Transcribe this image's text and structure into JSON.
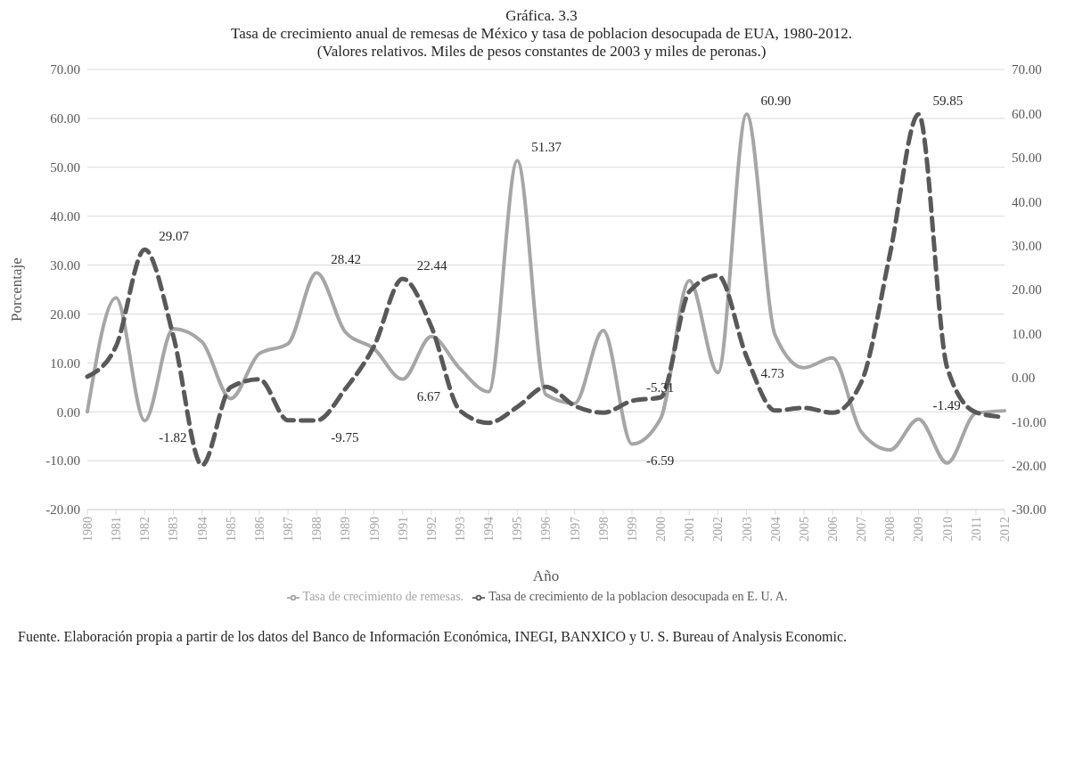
{
  "chart_data": {
    "type": "line",
    "title": "Gráfica. 3.3",
    "subtitle": "Tasa de crecimiento anual de remesas de México y tasa de poblacion desocupada de EUA,  1980-2012.\n(Valores relativos. Miles de pesos constantes de 2003  y miles de peronas.)",
    "xlabel": "Año",
    "ylabel": "Porcentaje",
    "categories": [
      "1980",
      "1981",
      "1982",
      "1983",
      "1984",
      "1985",
      "1986",
      "1987",
      "1988",
      "1989",
      "1990",
      "1991",
      "1992",
      "1993",
      "1994",
      "1995",
      "1996",
      "1997",
      "1998",
      "1999",
      "2000",
      "2001",
      "2002",
      "2003",
      "2004",
      "2005",
      "2006",
      "2007",
      "2008",
      "2009",
      "2010",
      "2011",
      "2012"
    ],
    "series": [
      {
        "name": "Tasa de crecimiento  de remesas.",
        "color": "#a6a6a6",
        "line_style": "solid",
        "values": [
          0,
          23.3,
          -1.82,
          17.0,
          14.3,
          2.7,
          11.9,
          13.9,
          28.42,
          16.3,
          12.9,
          6.67,
          15.4,
          8.8,
          4.1,
          51.37,
          3.5,
          1.7,
          16.6,
          -6.59,
          -1.4,
          26.8,
          8.0,
          60.9,
          15.6,
          9.0,
          11.0,
          -4.1,
          -7.8,
          -1.49,
          -10.5,
          -0.3,
          0.2
        ],
        "value_labels": [
          null,
          null,
          "-1.82",
          null,
          null,
          null,
          null,
          null,
          "28.42",
          null,
          null,
          "6.67",
          null,
          null,
          null,
          "51.37",
          null,
          null,
          null,
          "-6.59",
          null,
          null,
          null,
          "60.90",
          null,
          null,
          null,
          null,
          null,
          "-1.49",
          null,
          null,
          null
        ]
      },
      {
        "name": "Tasa de crecimiento  de la poblacion desocupada en E. U. A.",
        "color": "#595959",
        "line_style": "dashed",
        "axis": "y2",
        "values": [
          0.2,
          7.1,
          29.07,
          9.4,
          -19.9,
          -2.2,
          -0.4,
          -9.7,
          -9.75,
          -2.6,
          7.1,
          22.44,
          11.6,
          -7.5,
          -10.3,
          -6.7,
          -2.1,
          -6.4,
          -8.0,
          -5.31,
          -4.5,
          19.5,
          23.2,
          4.73,
          -7.5,
          -6.9,
          -8.0,
          -1.1,
          28,
          59.85,
          2.2,
          -7.9,
          -9.0
        ],
        "value_labels": [
          null,
          null,
          "29.07",
          null,
          null,
          null,
          null,
          null,
          "-9.75",
          null,
          null,
          "22.44",
          null,
          null,
          null,
          null,
          null,
          null,
          null,
          "-5.31",
          null,
          null,
          null,
          "4.73",
          null,
          null,
          null,
          null,
          null,
          "59.85",
          null,
          null,
          null
        ]
      }
    ],
    "ylim": [
      -20,
      70
    ],
    "yticks": [
      {
        "value": -20,
        "label": "-20.00"
      },
      {
        "value": -10,
        "label": "-10.00"
      },
      {
        "value": 0,
        "label": "0.00"
      },
      {
        "value": 10,
        "label": "10.00"
      },
      {
        "value": 20,
        "label": "20.00"
      },
      {
        "value": 30,
        "label": "30.00"
      },
      {
        "value": 40,
        "label": "40.00"
      },
      {
        "value": 50,
        "label": "50.00"
      },
      {
        "value": 60,
        "label": "60.00"
      },
      {
        "value": 70,
        "label": "70.00"
      }
    ],
    "y2lim": [
      -30,
      70
    ],
    "y2ticks": [
      {
        "value": -30,
        "label": "-30.00"
      },
      {
        "value": -20,
        "label": "-20.00"
      },
      {
        "value": -10,
        "label": "-10.00"
      },
      {
        "value": 0,
        "label": "0.00"
      },
      {
        "value": 10,
        "label": "10.00"
      },
      {
        "value": 20,
        "label": "20.00"
      },
      {
        "value": 30,
        "label": "30.00"
      },
      {
        "value": 40,
        "label": "40.00"
      },
      {
        "value": 50,
        "label": "50.00"
      },
      {
        "value": 60,
        "label": "60.00"
      },
      {
        "value": 70,
        "label": "70.00"
      }
    ],
    "grid": "y",
    "legend": "bottom",
    "marker": "none",
    "annotations": [
      "Fuente. Elaboración propia a partir de los datos del Banco de Información Económica, INEGI, BANXICO y U. S. Bureau of Analysis Economic."
    ]
  }
}
